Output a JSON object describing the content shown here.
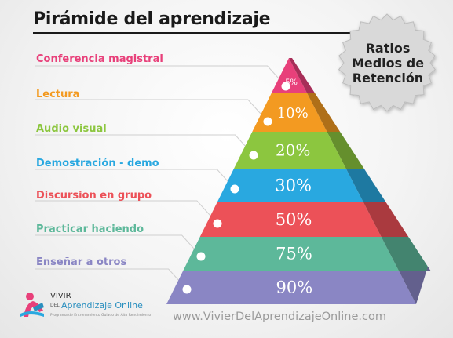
{
  "title": "Pirámide del aprendizaje",
  "badge": {
    "line1": "Ratios",
    "line2": "Medios de",
    "line3": "Retención"
  },
  "levels": [
    {
      "label": "Conferencia magistral",
      "value": "5%",
      "color": "#e8407a"
    },
    {
      "label": "Lectura",
      "value": "10%",
      "color": "#f39a21"
    },
    {
      "label": "Audio visual",
      "value": "20%",
      "color": "#8cc63f"
    },
    {
      "label": "Demostración - demo",
      "value": "30%",
      "color": "#29a8e0"
    },
    {
      "label": "Discursion en grupo",
      "value": "50%",
      "color": "#ec5158"
    },
    {
      "label": "Practicar haciendo",
      "value": "75%",
      "color": "#5db89a"
    },
    {
      "label": "Enseñar a otros",
      "value": "90%",
      "color": "#8a86c4"
    }
  ],
  "logo": {
    "word1": "VIVIR",
    "pre": "DEL",
    "word2": "Aprendizaje Online",
    "sub": "Programa de Entrenamiento Guiado de Alto Rendimiento",
    "icon": "figure-reading-icon"
  },
  "footer_url": "www.VivierDelAprendizajeOnline.com"
}
